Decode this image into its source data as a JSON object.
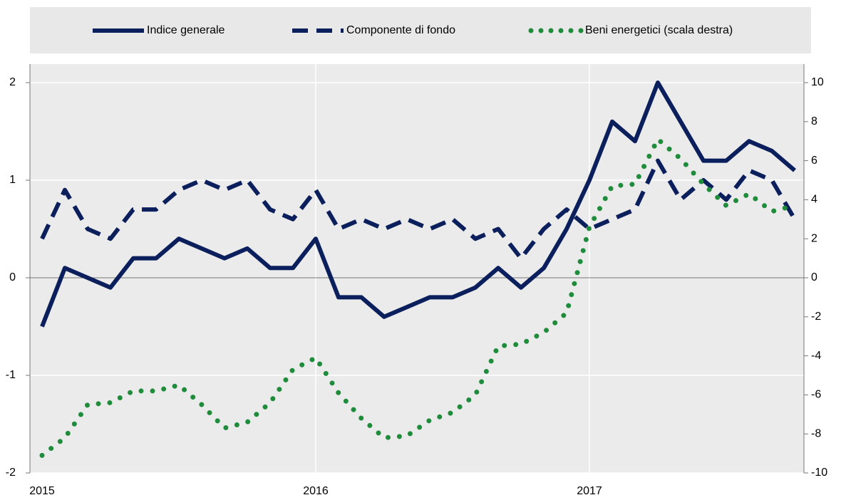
{
  "chart_data": {
    "type": "line",
    "categories": [
      "2015",
      null,
      null,
      null,
      null,
      null,
      null,
      null,
      null,
      null,
      null,
      null,
      "2016",
      null,
      null,
      null,
      null,
      null,
      null,
      null,
      null,
      null,
      null,
      null,
      "2017",
      null,
      null,
      null,
      null,
      null,
      null,
      null,
      null,
      null
    ],
    "series": [
      {
        "name": "Indice generale",
        "color": "#0b1f5c",
        "dash": "solid",
        "values": [
          -0.5,
          0.1,
          0.0,
          -0.1,
          0.2,
          0.2,
          0.4,
          0.3,
          0.2,
          0.3,
          0.1,
          0.1,
          0.4,
          -0.2,
          -0.2,
          -0.4,
          -0.3,
          -0.2,
          -0.2,
          -0.1,
          0.1,
          -0.1,
          0.1,
          0.5,
          1.0,
          1.6,
          1.4,
          2.0,
          1.6,
          1.2,
          1.2,
          1.4,
          1.3,
          1.1
        ]
      },
      {
        "name": "Componente di fondo",
        "color": "#0b1f5c",
        "dash": "dashed",
        "values": [
          0.4,
          0.9,
          0.5,
          0.4,
          0.7,
          0.7,
          0.9,
          1.0,
          0.9,
          1.0,
          0.7,
          0.6,
          0.9,
          0.5,
          0.6,
          0.5,
          0.6,
          0.5,
          0.6,
          0.4,
          0.5,
          0.2,
          0.5,
          0.7,
          0.5,
          0.6,
          0.7,
          1.2,
          0.8,
          1.0,
          0.8,
          1.1,
          1.0,
          0.6
        ]
      },
      {
        "name": "Beni energetici (scala destra)",
        "color": "#1e8c3a",
        "dash": "dotted",
        "axis": "y2",
        "values": [
          -9.1,
          -8.2,
          -6.5,
          -6.4,
          -5.8,
          -5.8,
          -5.5,
          -6.5,
          -7.7,
          -7.4,
          -6.4,
          -4.7,
          -4.1,
          -5.9,
          -7.2,
          -8.2,
          -8.1,
          -7.3,
          -6.9,
          -6.0,
          -3.5,
          -3.4,
          -2.8,
          -1.8,
          2.6,
          4.7,
          4.8,
          7.1,
          6.1,
          4.8,
          3.7,
          4.3,
          3.4,
          3.7
        ]
      }
    ],
    "ylim": [
      -2,
      2
    ],
    "yticks": [
      -2,
      -1,
      0,
      1,
      2
    ],
    "y2lim": [
      -10,
      10
    ],
    "y2ticks": [
      -10,
      -8,
      -6,
      -4,
      -2,
      0,
      2,
      4,
      6,
      8,
      10
    ],
    "grid": true,
    "legend": "top"
  }
}
